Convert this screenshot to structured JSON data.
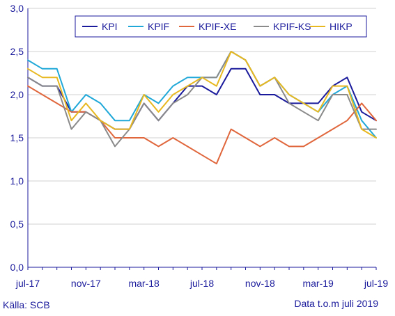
{
  "chart_data": {
    "type": "line",
    "title": "",
    "xlabel": "",
    "ylabel": "",
    "ylim": [
      0,
      3
    ],
    "yticks": [
      "0,0",
      "0,5",
      "1,0",
      "1,5",
      "2,0",
      "2,5",
      "3,0"
    ],
    "ytick_values": [
      0,
      0.5,
      1,
      1.5,
      2,
      2.5,
      3
    ],
    "grid": "horizontal",
    "legend_position": "top-right",
    "x": [
      "jul-17",
      "aug-17",
      "sep-17",
      "okt-17",
      "nov-17",
      "dec-17",
      "jan-18",
      "feb-18",
      "mar-18",
      "apr-18",
      "maj-18",
      "jun-18",
      "jul-18",
      "aug-18",
      "sep-18",
      "okt-18",
      "nov-18",
      "dec-18",
      "jan-19",
      "feb-19",
      "mar-19",
      "apr-19",
      "maj-19",
      "jun-19",
      "jul-19"
    ],
    "xtick_labels": [
      {
        "index": 0,
        "label": "jul-17"
      },
      {
        "index": 4,
        "label": "nov-17"
      },
      {
        "index": 8,
        "label": "mar-18"
      },
      {
        "index": 12,
        "label": "jul-18"
      },
      {
        "index": 16,
        "label": "nov-18"
      },
      {
        "index": 20,
        "label": "mar-19"
      },
      {
        "index": 24,
        "label": "jul-19"
      }
    ],
    "series": [
      {
        "name": "KPI",
        "color": "#1a1a9c",
        "values": [
          2.2,
          2.1,
          2.1,
          1.8,
          1.8,
          1.7,
          1.6,
          1.6,
          1.9,
          1.7,
          1.9,
          2.1,
          2.1,
          2.0,
          2.3,
          2.3,
          2.0,
          2.0,
          1.9,
          1.9,
          1.9,
          2.1,
          2.2,
          1.8,
          1.7
        ]
      },
      {
        "name": "KPIF",
        "color": "#1fa8d8",
        "values": [
          2.4,
          2.3,
          2.3,
          1.8,
          2.0,
          1.9,
          1.7,
          1.7,
          2.0,
          1.9,
          2.1,
          2.2,
          2.2,
          2.2,
          2.5,
          2.4,
          2.1,
          2.2,
          2.0,
          1.9,
          1.8,
          2.0,
          2.1,
          1.7,
          1.5
        ]
      },
      {
        "name": "KPIF-XE",
        "color": "#e0663c",
        "values": [
          2.1,
          2.0,
          1.9,
          1.8,
          1.8,
          1.7,
          1.5,
          1.5,
          1.5,
          1.4,
          1.5,
          1.4,
          1.3,
          1.2,
          1.6,
          1.5,
          1.4,
          1.5,
          1.4,
          1.4,
          1.5,
          1.6,
          1.7,
          1.9,
          1.7
        ]
      },
      {
        "name": "KPIF-KS",
        "color": "#8a8a8a",
        "values": [
          2.2,
          2.1,
          2.1,
          1.6,
          1.8,
          1.7,
          1.4,
          1.6,
          1.9,
          1.7,
          1.9,
          2.0,
          2.2,
          2.2,
          2.5,
          2.4,
          2.1,
          2.2,
          1.9,
          1.8,
          1.7,
          2.0,
          2.0,
          1.6,
          1.6
        ]
      },
      {
        "name": "HIKP",
        "color": "#e8b820",
        "values": [
          2.3,
          2.2,
          2.2,
          1.7,
          1.9,
          1.7,
          1.6,
          1.6,
          2.0,
          1.8,
          2.0,
          2.1,
          2.2,
          2.1,
          2.5,
          2.4,
          2.1,
          2.2,
          2.0,
          1.9,
          1.8,
          2.1,
          2.1,
          1.6,
          1.5
        ]
      }
    ]
  },
  "footer": {
    "source": "Källa: SCB",
    "data_note": "Data t.o.m juli 2019"
  }
}
